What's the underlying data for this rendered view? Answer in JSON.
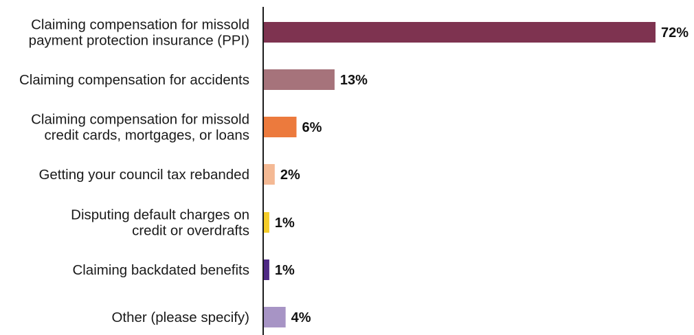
{
  "chart_data": {
    "type": "bar",
    "orientation": "horizontal",
    "categories": [
      [
        "Claiming compensation for missold",
        "payment protection insurance (PPI)"
      ],
      [
        "Claiming compensation for accidents"
      ],
      [
        "Claiming compensation for missold",
        "credit cards, mortgages, or loans"
      ],
      [
        "Getting your council tax rebanded"
      ],
      [
        "Disputing default charges on",
        "credit or overdrafts"
      ],
      [
        "Claiming backdated benefits"
      ],
      [
        "Other (please specify)"
      ]
    ],
    "values": [
      72,
      13,
      6,
      2,
      1,
      1,
      4
    ],
    "value_labels": [
      "72%",
      "13%",
      "6%",
      "2%",
      "1%",
      "1%",
      "4%"
    ],
    "colors": [
      "#7e3350",
      "#a6737b",
      "#ec7a3d",
      "#f4b994",
      "#f5cd2a",
      "#4f2a84",
      "#a794c5"
    ],
    "xlim": [
      0,
      72
    ],
    "grid": false,
    "legend": "none"
  }
}
